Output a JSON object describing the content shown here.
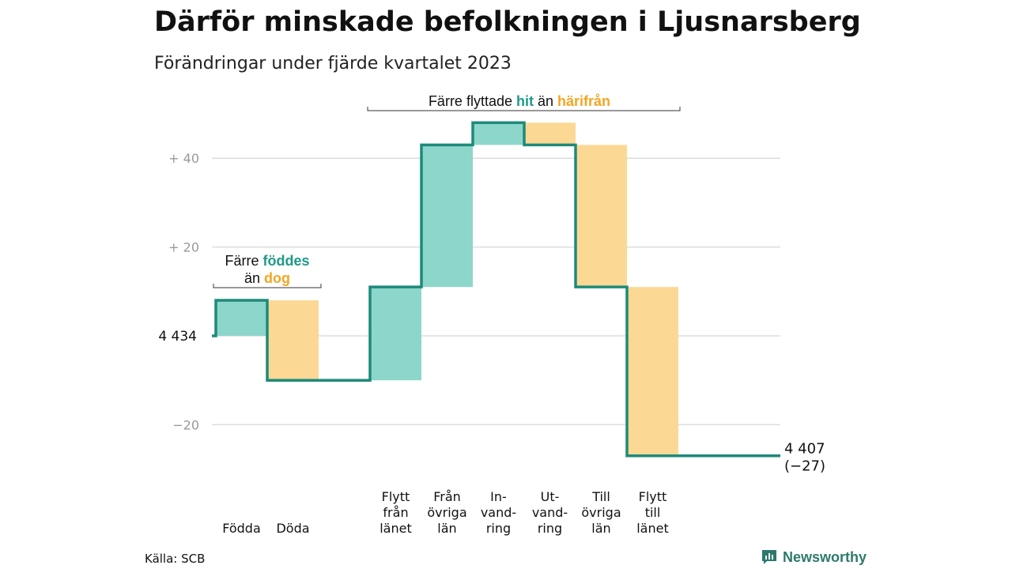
{
  "title": "Därför minskade befolkningen i Ljusnarsberg",
  "subtitle": "Förändringar under fjärde kvartalet 2023",
  "source": "Källa: SCB",
  "brand": "Newsworthy",
  "colors": {
    "increase": "#8dd6cb",
    "decrease": "#fcd895",
    "line": "#1e8a7a",
    "teal_text": "#1e9a88",
    "orange_text": "#f3a623",
    "grid": "#dddddd",
    "tick": "#999999"
  },
  "chart_data": {
    "type": "waterfall",
    "start_value": 4434,
    "start_label": "4  434",
    "end_value": 4407,
    "end_label": "4 407",
    "end_change_label": "(−27)",
    "y_ticks": [
      {
        "value": 40,
        "label": "+  40"
      },
      {
        "value": 20,
        "label": "+  20"
      },
      {
        "value": -20,
        "label": "−20"
      }
    ],
    "ylim": [
      -27,
      48
    ],
    "steps": [
      {
        "label": [
          "",
          "",
          "Födda"
        ],
        "change": 8,
        "kind": "increase"
      },
      {
        "label": [
          "",
          "",
          "Döda"
        ],
        "change": -18,
        "kind": "decrease"
      },
      {
        "label": [
          "Flytt",
          "från",
          "länet"
        ],
        "change": 21,
        "kind": "increase"
      },
      {
        "label": [
          "Från",
          "övriga",
          "län"
        ],
        "change": 32,
        "kind": "increase"
      },
      {
        "label": [
          "In-",
          "vand-",
          "ring"
        ],
        "change": 5,
        "kind": "increase"
      },
      {
        "label": [
          "Ut-",
          "vand-",
          "ring"
        ],
        "change": -5,
        "kind": "decrease"
      },
      {
        "label": [
          "Till",
          "övriga",
          "län"
        ],
        "change": -32,
        "kind": "decrease"
      },
      {
        "label": [
          "Flytt",
          "till",
          "länet"
        ],
        "change": -38,
        "kind": "decrease"
      }
    ],
    "annotations": [
      {
        "lines": [
          [
            {
              "text": "Färre ",
              "tone": "dark"
            },
            {
              "text": "föddes",
              "tone": "teal"
            }
          ],
          [
            {
              "text": "än ",
              "tone": "dark"
            },
            {
              "text": "dog",
              "tone": "orange"
            }
          ]
        ]
      },
      {
        "lines": [
          [
            {
              "text": "Färre flyttade ",
              "tone": "dark"
            },
            {
              "text": "hit",
              "tone": "teal"
            },
            {
              "text": " än ",
              "tone": "dark"
            },
            {
              "text": "härifrån",
              "tone": "orange"
            }
          ]
        ]
      }
    ]
  }
}
